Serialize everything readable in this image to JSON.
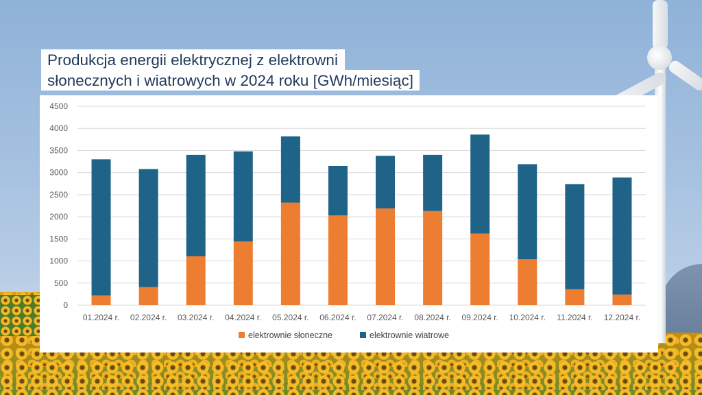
{
  "title": {
    "line1": "Produkcja energii elektrycznej z elektrowni",
    "line2": "słonecznych i wiatrowych w 2024 roku [GWh/miesiąc]"
  },
  "colors": {
    "solar": "#ed7d31",
    "wind": "#1f6388",
    "grid": "#d9d9d9"
  },
  "chart_data": {
    "type": "bar",
    "stacked": true,
    "title": "Produkcja energii elektrycznej z elektrowni słonecznych i wiatrowych w 2024 roku [GWh/miesiąc]",
    "xlabel": "",
    "ylabel": "",
    "ylim": [
      0,
      4500
    ],
    "yticks": [
      0,
      500,
      1000,
      1500,
      2000,
      2500,
      3000,
      3500,
      4000,
      4500
    ],
    "grid": true,
    "legend_position": "bottom",
    "categories": [
      "01.2024 r.",
      "02.2024 r.",
      "03.2024 r.",
      "04.2024 r.",
      "05.2024 r.",
      "06.2024 r.",
      "07.2024 r.",
      "08.2024 r.",
      "09.2024 r.",
      "10.2024 r.",
      "11.2024 r.",
      "12.2024 r."
    ],
    "series": [
      {
        "name": "elektrownie słoneczne",
        "values": [
          220,
          410,
          1110,
          1440,
          2320,
          2030,
          2190,
          2130,
          1620,
          1040,
          360,
          240
        ]
      },
      {
        "name": "elektrownie wiatrowe",
        "values": [
          3080,
          2670,
          2290,
          2040,
          1500,
          1120,
          1190,
          1270,
          2240,
          2150,
          2380,
          2650
        ]
      }
    ]
  }
}
